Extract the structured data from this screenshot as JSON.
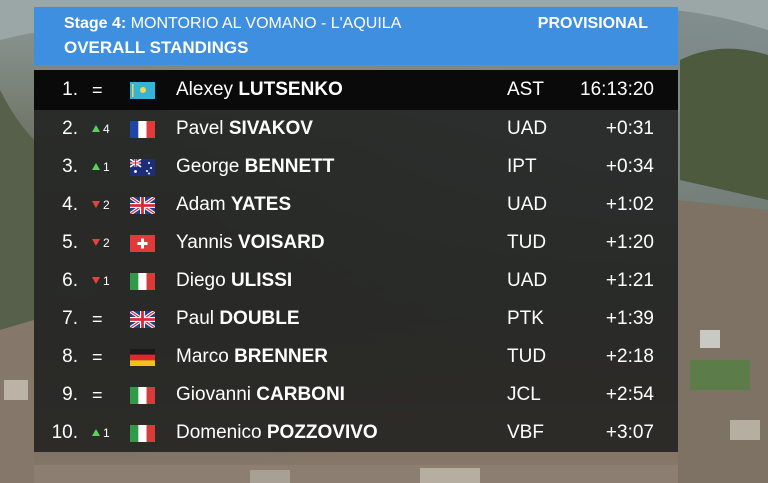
{
  "header": {
    "stage_label": "Stage 4:",
    "stage_route": "MONTORIO AL VOMANO - L'AQUILA",
    "subtitle": "OVERALL STANDINGS",
    "status": "PROVISIONAL"
  },
  "colors": {
    "header_bg": "#3f8fe0",
    "up_arrow": "#5bd15b",
    "down_arrow": "#e5443c"
  },
  "standings": [
    {
      "pos": "1.",
      "move_type": "same",
      "move_text": "=",
      "flag": "kazakhstan-flag-icon",
      "first": "Alexey",
      "last": "LUTSENKO",
      "team": "AST",
      "time": "16:13:20"
    },
    {
      "pos": "2.",
      "move_type": "up",
      "move_text": "4",
      "flag": "france-flag-icon",
      "first": "Pavel",
      "last": "SIVAKOV",
      "team": "UAD",
      "time": "+0:31"
    },
    {
      "pos": "3.",
      "move_type": "up",
      "move_text": "1",
      "flag": "australia-flag-icon",
      "first": "George",
      "last": "BENNETT",
      "team": "IPT",
      "time": "+0:34"
    },
    {
      "pos": "4.",
      "move_type": "down",
      "move_text": "2",
      "flag": "uk-flag-icon",
      "first": "Adam",
      "last": "YATES",
      "team": "UAD",
      "time": "+1:02"
    },
    {
      "pos": "5.",
      "move_type": "down",
      "move_text": "2",
      "flag": "switzerland-flag-icon",
      "first": "Yannis",
      "last": "VOISARD",
      "team": "TUD",
      "time": "+1:20"
    },
    {
      "pos": "6.",
      "move_type": "down",
      "move_text": "1",
      "flag": "italy-flag-icon",
      "first": "Diego",
      "last": "ULISSI",
      "team": "UAD",
      "time": "+1:21"
    },
    {
      "pos": "7.",
      "move_type": "same",
      "move_text": "=",
      "flag": "uk-flag-icon",
      "first": "Paul",
      "last": "DOUBLE",
      "team": "PTK",
      "time": "+1:39"
    },
    {
      "pos": "8.",
      "move_type": "same",
      "move_text": "=",
      "flag": "germany-flag-icon",
      "first": "Marco",
      "last": "BRENNER",
      "team": "TUD",
      "time": "+2:18"
    },
    {
      "pos": "9.",
      "move_type": "same",
      "move_text": "=",
      "flag": "italy-flag-icon",
      "first": "Giovanni",
      "last": "CARBONI",
      "team": "JCL",
      "time": "+2:54"
    },
    {
      "pos": "10.",
      "move_type": "up",
      "move_text": "1",
      "flag": "italy-flag-icon",
      "first": "Domenico",
      "last": "POZZOVIVO",
      "team": "VBF",
      "time": "+3:07"
    }
  ]
}
